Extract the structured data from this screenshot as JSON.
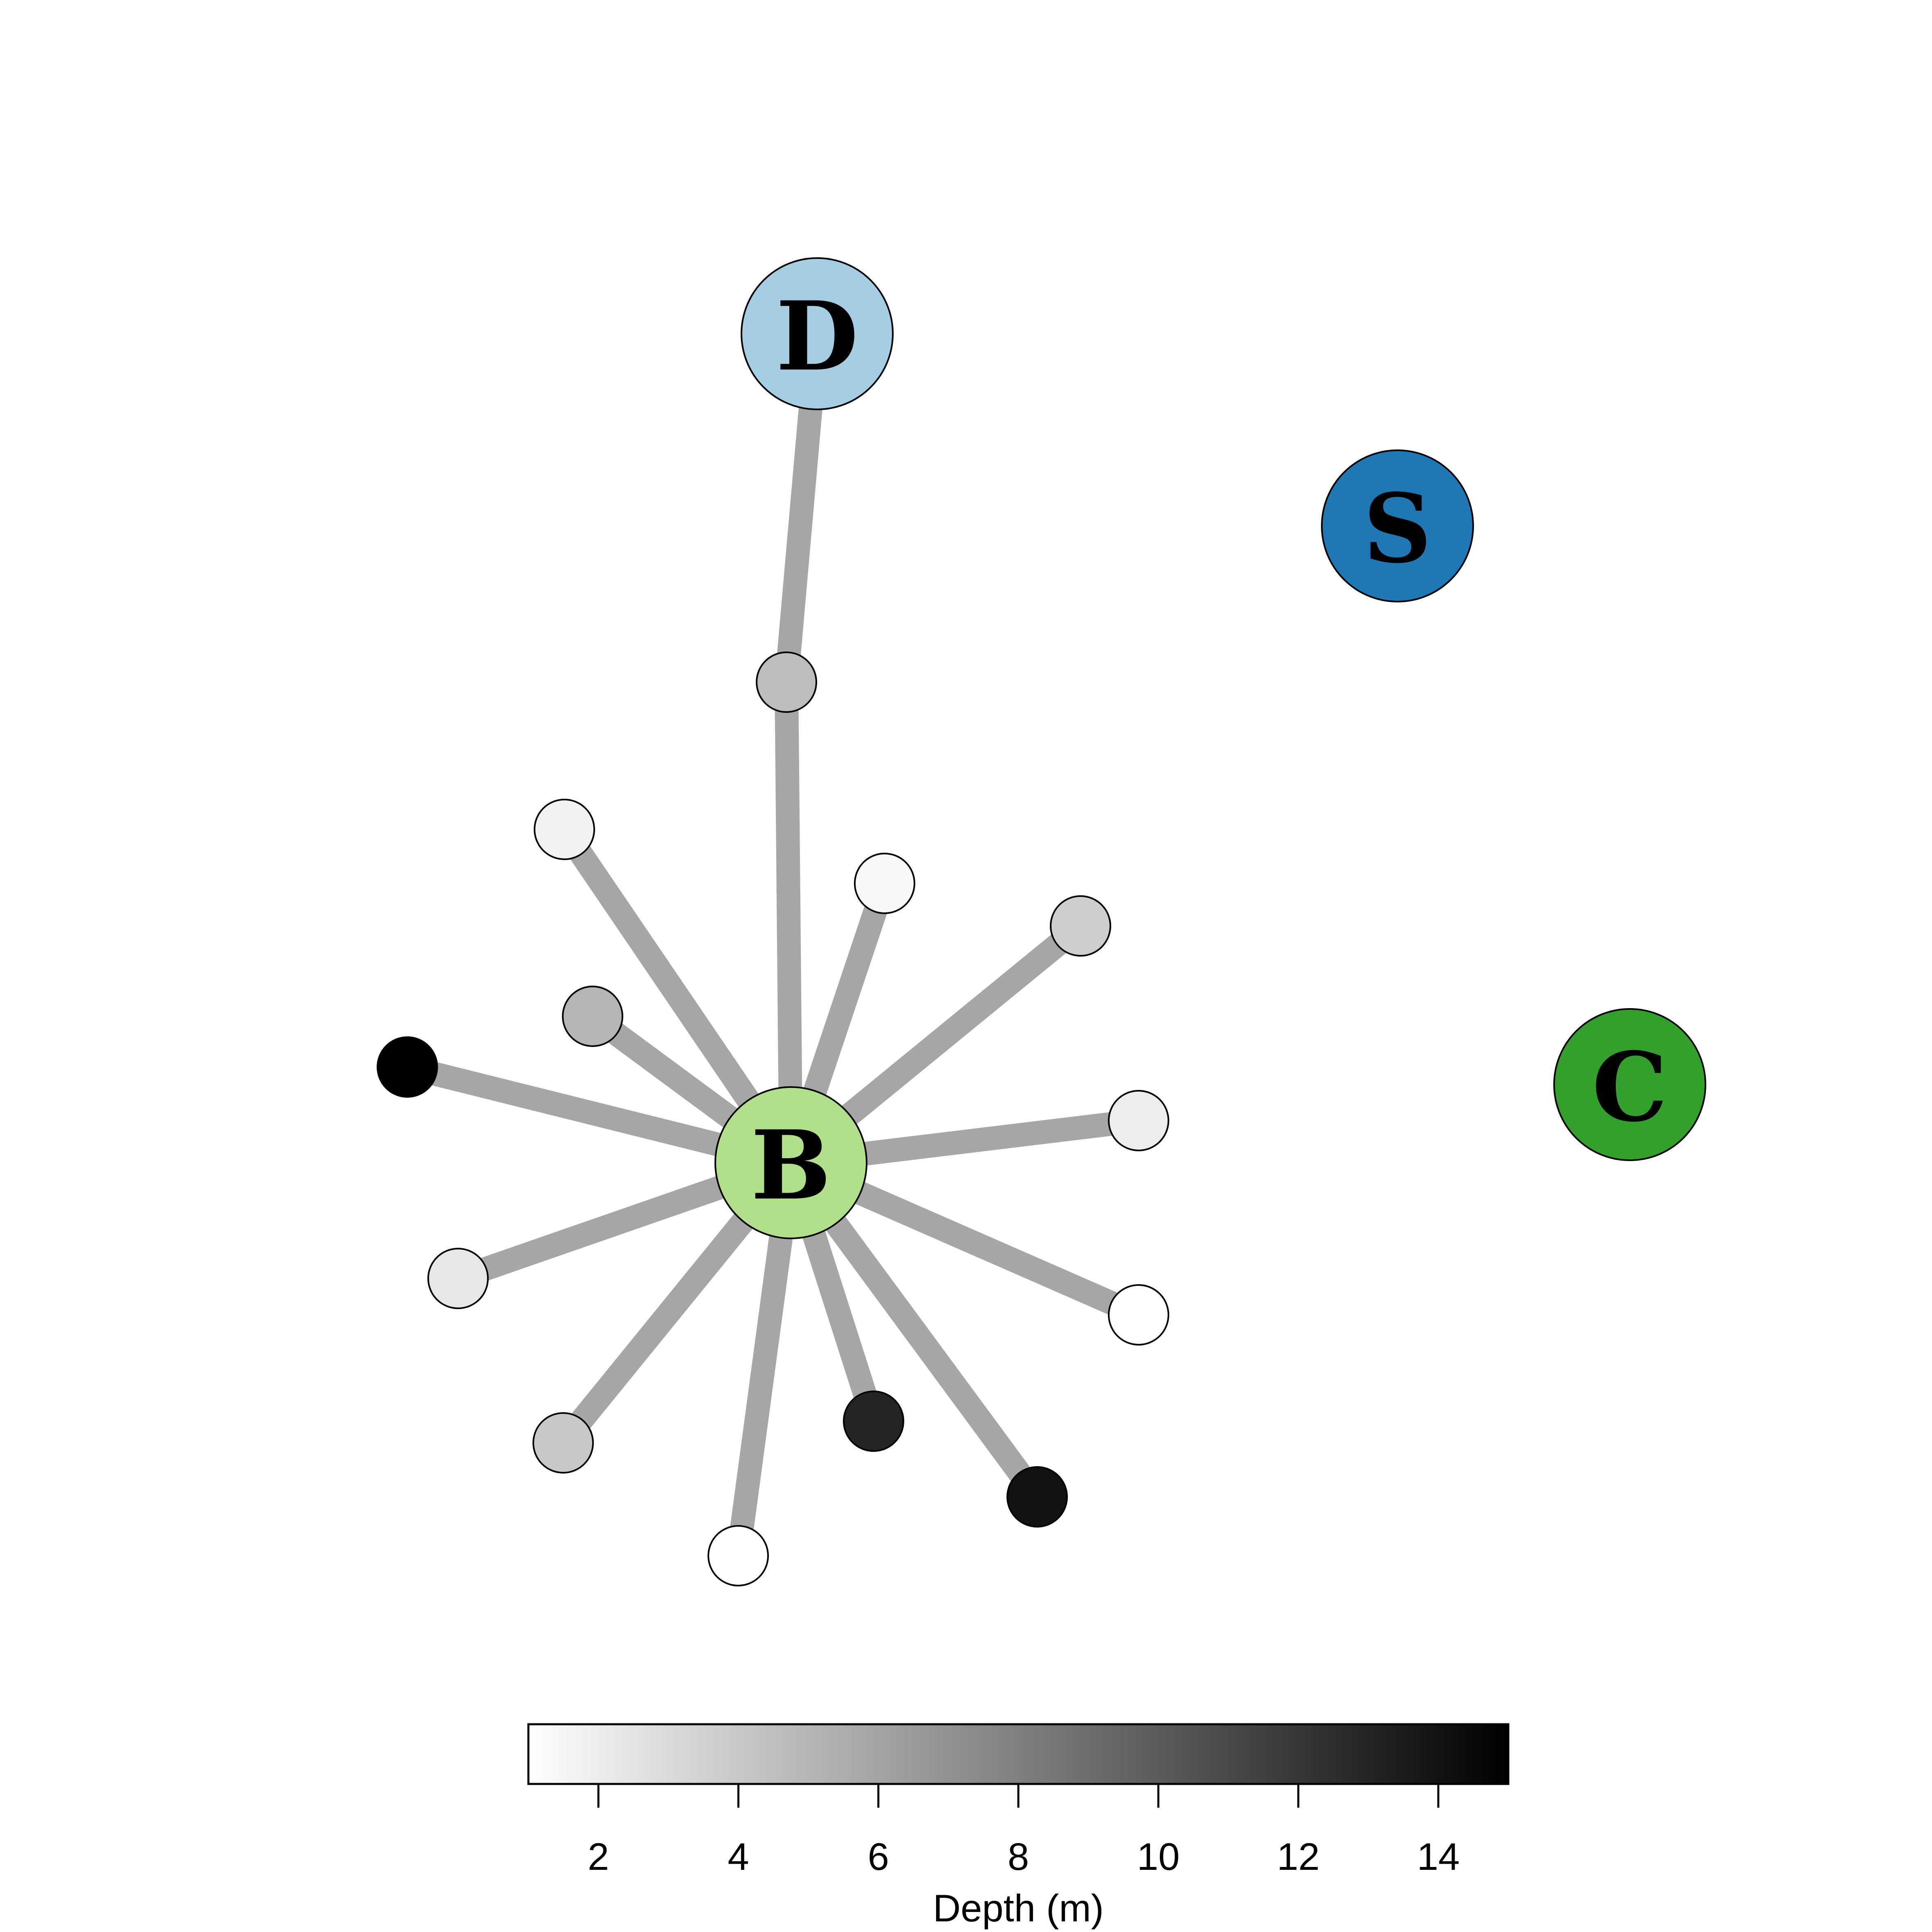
{
  "groups": [
    {
      "id": "D",
      "label": "D",
      "color": "#a6cee3"
    },
    {
      "id": "S",
      "label": "S",
      "color": "#1f78b4"
    },
    {
      "id": "C",
      "label": "C",
      "color": "#33a02c"
    },
    {
      "id": "B",
      "label": "B",
      "color": "#b2df8a"
    }
  ],
  "sites": [
    {
      "id": "s1",
      "depth": 4.6,
      "links": [
        "B",
        "D"
      ]
    },
    {
      "id": "s2",
      "depth": 1.7,
      "links": [
        "B"
      ]
    },
    {
      "id": "s3",
      "depth": 1.4,
      "links": [
        "B"
      ]
    },
    {
      "id": "s4",
      "depth": 3.7,
      "links": [
        "B"
      ]
    },
    {
      "id": "s5",
      "depth": 5.0,
      "links": [
        "B"
      ]
    },
    {
      "id": "s6",
      "depth": 15.0,
      "links": [
        "B"
      ]
    },
    {
      "id": "s7",
      "depth": 2.0,
      "links": [
        "B"
      ]
    },
    {
      "id": "s8",
      "depth": 2.3,
      "links": [
        "B"
      ]
    },
    {
      "id": "s9",
      "depth": 1.0,
      "links": [
        "B"
      ]
    },
    {
      "id": "s10",
      "depth": 4.0,
      "links": [
        "B"
      ]
    },
    {
      "id": "s11",
      "depth": 13.0,
      "links": [
        "B"
      ]
    },
    {
      "id": "s12",
      "depth": 1.0,
      "links": [
        "B"
      ]
    },
    {
      "id": "s13",
      "depth": 14.0,
      "links": [
        "B"
      ]
    }
  ],
  "legend": {
    "title": "Depth (m)",
    "range": [
      1,
      15
    ],
    "ticks": [
      2,
      4,
      6,
      8,
      10,
      12,
      14
    ],
    "color_low": "#ffffff",
    "color_high": "#000000"
  },
  "edge_color": "#a6a6a6"
}
